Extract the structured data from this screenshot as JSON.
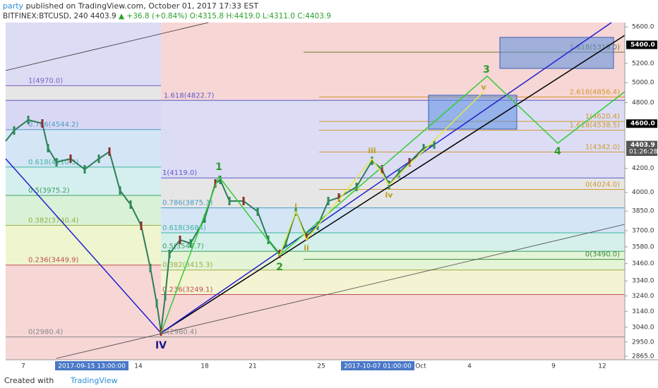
{
  "header": {
    "author": "party",
    "published": " published on TradingView.com, October 01, 2017 17:33 EST",
    "symbol": "BITFINEX:BTCUSD, 240",
    "last": "4403.9",
    "change": "▲ +36.8 (+0.84%)",
    "ohlc": "O:4315.8 H:4419.0 L:4311.0 C:4403.9"
  },
  "price_axis": {
    "log": true,
    "range": [
      2845,
      5650
    ],
    "ticks": [
      {
        "value": 5600,
        "label": "5600.0"
      },
      {
        "value": 5200,
        "label": "5200.0"
      },
      {
        "value": 5000,
        "label": "5000.0"
      },
      {
        "value": 4800,
        "label": "4800.0"
      },
      {
        "value": 4200,
        "label": "4200.0"
      },
      {
        "value": 4000,
        "label": "4000.0"
      },
      {
        "value": 3850,
        "label": "3850.0"
      },
      {
        "value": 3700,
        "label": "3700.0"
      },
      {
        "value": 3580,
        "label": "3580.0"
      },
      {
        "value": 3460,
        "label": "3460.0"
      },
      {
        "value": 3340,
        "label": "3340.0"
      },
      {
        "value": 3240,
        "label": "3240.0"
      },
      {
        "value": 3140,
        "label": "3140.0"
      },
      {
        "value": 3040,
        "label": "3040.0"
      },
      {
        "value": 2950,
        "label": "2950.0"
      },
      {
        "value": 2865,
        "label": "2865.0"
      }
    ]
  },
  "price_flags": [
    {
      "value": 5400,
      "label": "5400.0"
    },
    {
      "value": 4600,
      "label": "4600.0"
    },
    {
      "value": 4403.9,
      "label": "4403.9"
    }
  ],
  "countdown": "01:26:28",
  "date_axis": [
    "7",
    "2017-09-15 13:00:00",
    "14",
    "18",
    "21",
    "25",
    "2017-10-07 01:00:00",
    "Oct",
    "4",
    "9",
    "12"
  ],
  "fib_left": [
    {
      "value": 4970,
      "label": "1(4970.0)"
    },
    {
      "value": 4822.7,
      "label": "1.618(4822.7)"
    },
    {
      "value": 4544.2,
      "label": "0.786(4544.2)"
    },
    {
      "value": 4210.3,
      "label": "0.618(4210.3)"
    },
    {
      "value": 3975.2,
      "label": "0.5(3975.2)"
    },
    {
      "value": 3740.4,
      "label": "0.382(3740.4)"
    },
    {
      "value": 3449.9,
      "label": "0.236(3449.9)"
    },
    {
      "value": 2980.4,
      "label": "0(2980.4)"
    }
  ],
  "fib_mid": [
    {
      "value": 4119,
      "label": "1(4119.0)"
    },
    {
      "value": 3875.3,
      "label": "0.786(3875.3)"
    },
    {
      "value": 3684,
      "label": "0.618(3684)"
    },
    {
      "value": 3547.7,
      "label": "0.5(3547.7)"
    },
    {
      "value": 3415.3,
      "label": "0.382(3415.3)"
    },
    {
      "value": 3249.1,
      "label": "0.236(3249.1)"
    },
    {
      "value": 2980.4,
      "label": "0(2980.4)"
    }
  ],
  "fib_right": [
    {
      "value": 5319,
      "label": "1.618(5319.0)"
    },
    {
      "value": 4856.4,
      "label": "2.618(4856.4)"
    },
    {
      "value": 4620.4,
      "label": "1(4620.4)"
    },
    {
      "value": 4538.5,
      "label": "1.618(4538.5)"
    },
    {
      "value": 4342,
      "label": "1(4342.0)"
    },
    {
      "value": 4024,
      "label": "0(4024.0)"
    },
    {
      "value": 3490,
      "label": "0(3490.0)"
    }
  ],
  "waves": [
    "1",
    "2",
    "3",
    "4",
    "IV",
    "i",
    "ii",
    "iii",
    "iv",
    "v"
  ],
  "footer": {
    "created": "Created with",
    "brand": "TradingView"
  }
}
